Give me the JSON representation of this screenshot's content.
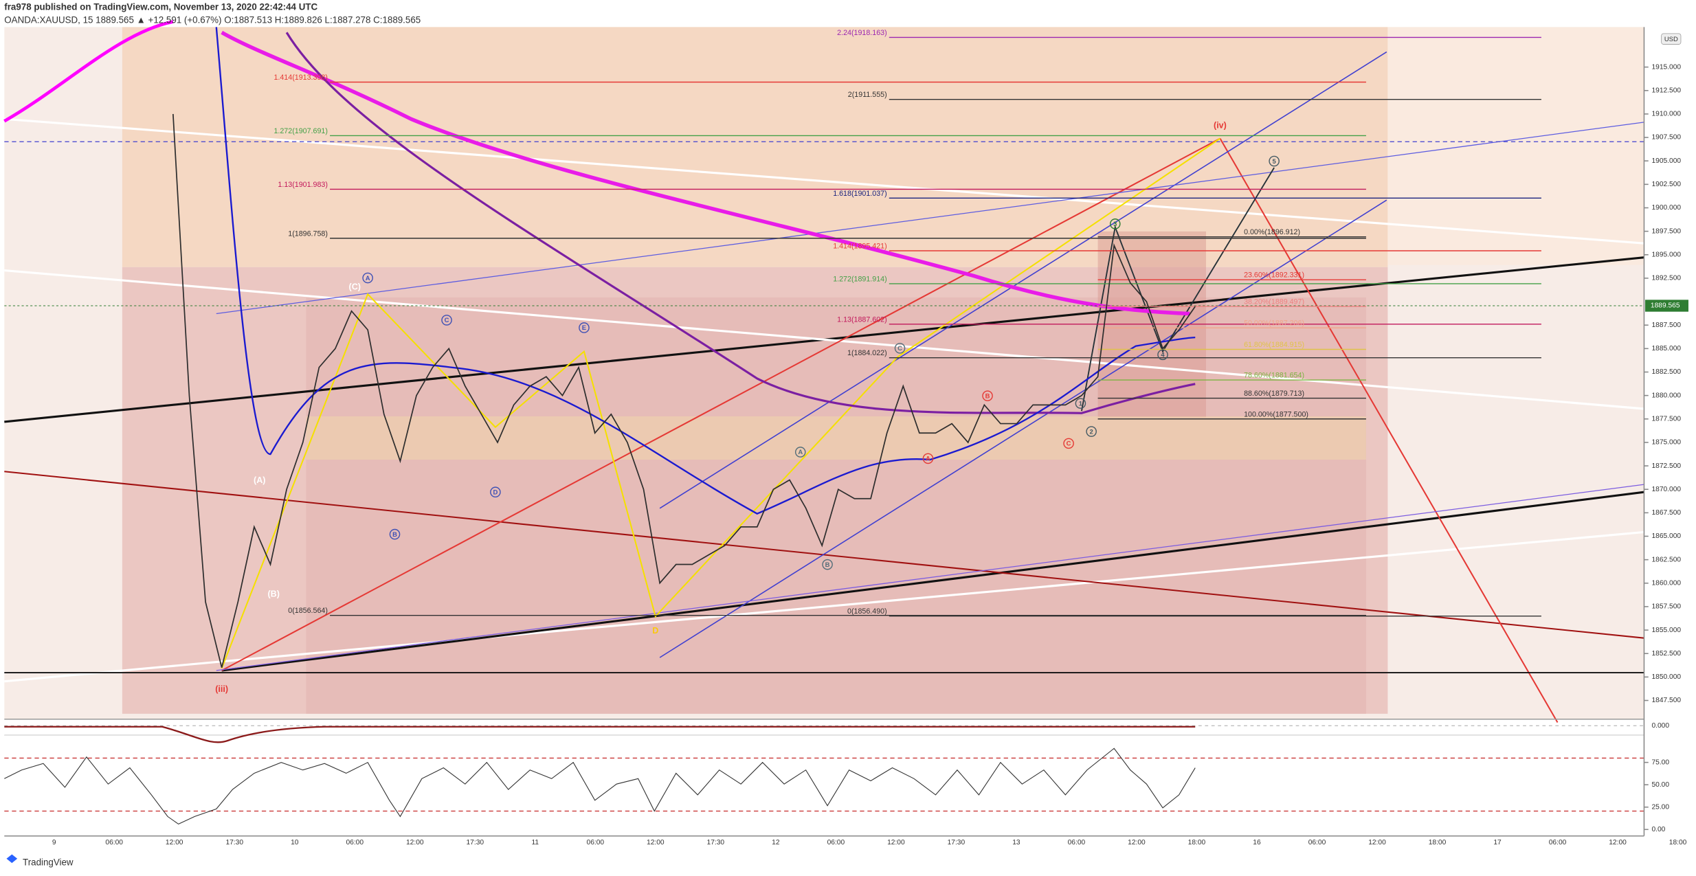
{
  "header": {
    "author_line": "fra978 published on TradingView.com, November 13, 2020 22:42:44 UTC",
    "symbol_line": "OANDA:XAUUSD, 15  1889.565 ▲ +12.591 (+0.67%)  O:1887.513  H:1889.826  L:1887.278  C:1889.565"
  },
  "currency": "USD",
  "current_price": {
    "value": 1889.565,
    "label": "1889.565"
  },
  "price_axis": {
    "ticks": [
      {
        "value": 1847.5,
        "label": "1847.500"
      },
      {
        "value": 1850,
        "label": "1850.000"
      },
      {
        "value": 1852.5,
        "label": "1852.500"
      },
      {
        "value": 1855,
        "label": "1855.000"
      },
      {
        "value": 1857.5,
        "label": "1857.500"
      },
      {
        "value": 1860,
        "label": "1860.000"
      },
      {
        "value": 1862.5,
        "label": "1862.500"
      },
      {
        "value": 1865,
        "label": "1865.000"
      },
      {
        "value": 1867.5,
        "label": "1867.500"
      },
      {
        "value": 1870,
        "label": "1870.000"
      },
      {
        "value": 1872.5,
        "label": "1872.500"
      },
      {
        "value": 1875,
        "label": "1875.000"
      },
      {
        "value": 1877.5,
        "label": "1877.500"
      },
      {
        "value": 1880,
        "label": "1880.000"
      },
      {
        "value": 1882.5,
        "label": "1882.500"
      },
      {
        "value": 1885,
        "label": "1885.000"
      },
      {
        "value": 1887.5,
        "label": "1887.500"
      },
      {
        "value": 1892.5,
        "label": "1892.500"
      },
      {
        "value": 1895,
        "label": "1895.000"
      },
      {
        "value": 1897.5,
        "label": "1897.500"
      },
      {
        "value": 1900,
        "label": "1900.000"
      },
      {
        "value": 1902.5,
        "label": "1902.500"
      },
      {
        "value": 1905,
        "label": "1905.000"
      },
      {
        "value": 1907.5,
        "label": "1907.500"
      },
      {
        "value": 1910,
        "label": "1910.000"
      },
      {
        "value": 1912.5,
        "label": "1912.500"
      },
      {
        "value": 1915,
        "label": "1915.000"
      }
    ]
  },
  "macd_axis": {
    "ticks": [
      {
        "value": 0,
        "label": "0.000"
      }
    ]
  },
  "oscillator_axis": {
    "ticks": [
      {
        "value": 75,
        "label": "75.00"
      },
      {
        "value": 50,
        "label": "50.00"
      },
      {
        "value": 25,
        "label": "25.00"
      },
      {
        "value": 0,
        "label": "0.00"
      }
    ]
  },
  "time_axis": {
    "labels": [
      "9",
      "06:00",
      "12:00",
      "17:30",
      "10",
      "06:00",
      "12:00",
      "17:30",
      "11",
      "06:00",
      "12:00",
      "17:30",
      "12",
      "06:00",
      "12:00",
      "17:30",
      "13",
      "06:00",
      "12:00",
      "18:00",
      "16",
      "06:00",
      "12:00",
      "18:00",
      "17",
      "06:00",
      "12:00",
      "18:00"
    ]
  },
  "price_series": {
    "values": [
      1910,
      1880,
      1858,
      1851,
      1858,
      1866,
      1862,
      1870,
      1875,
      1883,
      1885,
      1889,
      1887,
      1878,
      1873,
      1880,
      1883,
      1885,
      1881,
      1878,
      1875,
      1879,
      1881,
      1882,
      1880,
      1883,
      1876,
      1878,
      1875,
      1870,
      1860,
      1862,
      1862,
      1863,
      1864,
      1866,
      1866,
      1870,
      1871,
      1868,
      1864,
      1870,
      1869,
      1869,
      1876,
      1881,
      1876,
      1876,
      1877,
      1875,
      1879,
      1877,
      1877,
      1879,
      1879,
      1879,
      1880,
      1882,
      1896,
      1892,
      1890,
      1885,
      1887,
      1889.5
    ]
  },
  "fib_levels": [
    {
      "label": "2.24(1918.163)",
      "price": 1918.163,
      "color": "#9c27b0"
    },
    {
      "label": "1.414(1913.398)",
      "price": 1913.398,
      "color": "#e53935"
    },
    {
      "label": "2(1911.555)",
      "price": 1911.555,
      "color": "#333333"
    },
    {
      "label": "1.272(1907.691)",
      "price": 1907.691,
      "color": "#43a047"
    },
    {
      "label": "1.13(1901.983)",
      "price": 1901.983,
      "color": "#c2185b"
    },
    {
      "label": "1.618(1901.037)",
      "price": 1901.037,
      "color": "#1a237e"
    },
    {
      "label": "1(1896.758)",
      "price": 1896.758,
      "color": "#333333"
    },
    {
      "label": "0.00%(1896.912)",
      "price": 1896.912,
      "color": "#333333"
    },
    {
      "label": "1.414(1895.421)",
      "price": 1895.421,
      "color": "#e53935"
    },
    {
      "label": "23.60%(1892.331)",
      "price": 1892.331,
      "color": "#e53935"
    },
    {
      "label": "1.272(1891.914)",
      "price": 1891.914,
      "color": "#43a047"
    },
    {
      "label": "38.20%(1889.497)",
      "price": 1889.497,
      "color": "#ef8080"
    },
    {
      "label": "1.13(1887.602)",
      "price": 1887.602,
      "color": "#c2185b"
    },
    {
      "label": "50.00%(1887.206)",
      "price": 1887.206,
      "color": "#f2a48a"
    },
    {
      "label": "61.80%(1884.915)",
      "price": 1884.915,
      "color": "#e0c34a"
    },
    {
      "label": "1(1884.022)",
      "price": 1884.022,
      "color": "#333333"
    },
    {
      "label": "78.60%(1881.654)",
      "price": 1881.654,
      "color": "#7cb342"
    },
    {
      "label": "88.60%(1879.713)",
      "price": 1879.713,
      "color": "#333333"
    },
    {
      "label": "100.00%(1877.500)",
      "price": 1877.5,
      "color": "#333333"
    },
    {
      "label": "0(1856.564)",
      "price": 1856.564,
      "color": "#333333"
    },
    {
      "label": "0(1856.490)",
      "price": 1856.49,
      "color": "#333333"
    }
  ],
  "wave_labels": [
    {
      "text": "(iii)",
      "color": "#e53935",
      "circled": false
    },
    {
      "text": "(iv)",
      "color": "#e53935",
      "circled": false
    },
    {
      "text": "A",
      "color": "#3f51b5",
      "circled": true
    },
    {
      "text": "C",
      "color": "#3f51b5",
      "circled": true
    },
    {
      "text": "E",
      "color": "#3f51b5",
      "circled": true
    },
    {
      "text": "B",
      "color": "#3f51b5",
      "circled": true
    },
    {
      "text": "D",
      "color": "#3f51b5",
      "circled": true
    },
    {
      "text": "(C)",
      "color": "#ffffff",
      "circled": false
    },
    {
      "text": "(A)",
      "color": "#ffffff",
      "circled": false
    },
    {
      "text": "(B)",
      "color": "#ffffff",
      "circled": false
    },
    {
      "text": "D",
      "color": "#f9c80e",
      "circled": false
    },
    {
      "text": "A",
      "color": "#546e7a",
      "circled": true
    },
    {
      "text": "B",
      "color": "#546e7a",
      "circled": true
    },
    {
      "text": "C",
      "color": "#546e7a",
      "circled": true
    },
    {
      "text": "A",
      "color": "#e53935",
      "circled": true
    },
    {
      "text": "B",
      "color": "#e53935",
      "circled": true
    },
    {
      "text": "C",
      "color": "#e53935",
      "circled": true
    },
    {
      "text": "1",
      "color": "#455a64",
      "circled": true
    },
    {
      "text": "2",
      "color": "#455a64",
      "circled": true
    },
    {
      "text": "3",
      "color": "#2e7d32",
      "circled": true
    },
    {
      "text": "4",
      "color": "#455a64",
      "circled": true
    },
    {
      "text": "5",
      "color": "#455a64",
      "circled": true
    }
  ],
  "footer": {
    "brand": "TradingView"
  }
}
